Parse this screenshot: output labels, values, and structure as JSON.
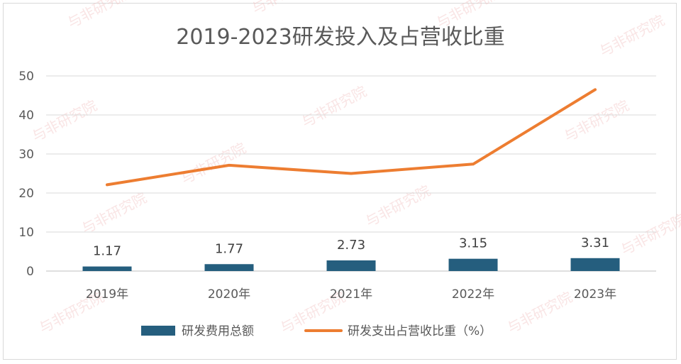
{
  "watermark": "与非研究院",
  "chart_data": {
    "type": "bar",
    "title": "2019-2023研发投入及占营收比重",
    "categories": [
      "2019年",
      "2020年",
      "2021年",
      "2022年",
      "2023年"
    ],
    "ylim": [
      0,
      50
    ],
    "yticks": [
      "0",
      "10",
      "20",
      "30",
      "40",
      "50"
    ],
    "grid": true,
    "legend_position": "bottom",
    "series": [
      {
        "name": "研发费用总额",
        "type": "bar",
        "color": "#255e7e",
        "values": [
          1.17,
          1.77,
          2.73,
          3.15,
          3.31
        ],
        "labels": [
          "1.17",
          "1.77",
          "2.73",
          "3.15",
          "3.31"
        ]
      },
      {
        "name": "研发支出占营收比重（%）",
        "type": "line",
        "color": "#ed7d31",
        "values": [
          22.1,
          27.1,
          25.0,
          27.4,
          46.5
        ]
      }
    ]
  }
}
